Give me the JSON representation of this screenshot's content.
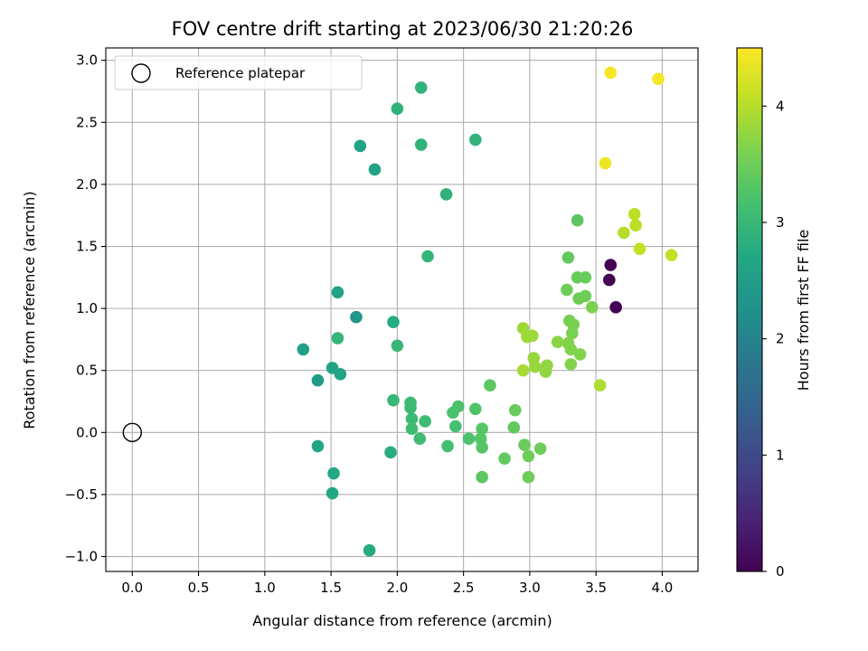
{
  "chart_data": {
    "type": "scatter",
    "title": "FOV centre drift starting at 2023/06/30 21:20:26",
    "xlabel": "Angular distance from reference (arcmin)",
    "ylabel": "Rotation from reference (arcmin)",
    "xlim": [
      -0.2,
      4.27
    ],
    "ylim": [
      -1.12,
      3.1
    ],
    "xticks": [
      "0.0",
      "0.5",
      "1.0",
      "1.5",
      "2.0",
      "2.5",
      "3.0",
      "3.5",
      "4.0"
    ],
    "xtick_values": [
      0,
      0.5,
      1.0,
      1.5,
      2.0,
      2.5,
      3.0,
      3.5,
      4.0
    ],
    "yticks": [
      "−1.0",
      "−0.5",
      "0.0",
      "0.5",
      "1.0",
      "1.5",
      "2.0",
      "2.5",
      "3.0"
    ],
    "ytick_values": [
      -1.0,
      -0.5,
      0,
      0.5,
      1.0,
      1.5,
      2.0,
      2.5,
      3.0
    ],
    "grid": true,
    "legend": {
      "placement": "top-left",
      "entries": [
        "Reference platepar"
      ]
    },
    "reference_point": {
      "x": 0,
      "y": 0
    },
    "colorbar": {
      "label": "Hours from first FF file",
      "colormap": "viridis",
      "range": [
        0,
        4.5
      ],
      "ticks": [
        "0",
        "1",
        "2",
        "3",
        "4"
      ],
      "tick_values": [
        0,
        1,
        2,
        3,
        4
      ]
    },
    "points": [
      {
        "x": 3.61,
        "y": 1.35,
        "h": 0.0
      },
      {
        "x": 3.6,
        "y": 1.23,
        "h": 0.0
      },
      {
        "x": 3.65,
        "y": 1.01,
        "h": 0.0
      },
      {
        "x": 1.69,
        "y": 0.93,
        "h": 2.35
      },
      {
        "x": 1.4,
        "y": 0.42,
        "h": 2.45
      },
      {
        "x": 1.29,
        "y": 0.67,
        "h": 2.55
      },
      {
        "x": 1.55,
        "y": 1.13,
        "h": 2.6
      },
      {
        "x": 1.51,
        "y": 0.52,
        "h": 2.6
      },
      {
        "x": 1.57,
        "y": 0.47,
        "h": 2.65
      },
      {
        "x": 1.4,
        "y": -0.11,
        "h": 2.65
      },
      {
        "x": 1.52,
        "y": -0.33,
        "h": 2.7
      },
      {
        "x": 1.51,
        "y": -0.49,
        "h": 2.7
      },
      {
        "x": 1.79,
        "y": -0.95,
        "h": 2.75
      },
      {
        "x": 1.72,
        "y": 2.31,
        "h": 2.6
      },
      {
        "x": 1.83,
        "y": 2.12,
        "h": 2.6
      },
      {
        "x": 1.97,
        "y": 0.89,
        "h": 2.75
      },
      {
        "x": 1.95,
        "y": -0.16,
        "h": 2.8
      },
      {
        "x": 1.55,
        "y": 0.76,
        "h": 2.95
      },
      {
        "x": 2.0,
        "y": 2.61,
        "h": 2.9
      },
      {
        "x": 2.18,
        "y": 2.78,
        "h": 2.9
      },
      {
        "x": 2.18,
        "y": 2.32,
        "h": 2.9
      },
      {
        "x": 2.37,
        "y": 1.92,
        "h": 2.9
      },
      {
        "x": 2.59,
        "y": 2.36,
        "h": 2.9
      },
      {
        "x": 2.23,
        "y": 1.42,
        "h": 2.95
      },
      {
        "x": 2.0,
        "y": 0.7,
        "h": 3.0
      },
      {
        "x": 1.97,
        "y": 0.26,
        "h": 3.0
      },
      {
        "x": 2.1,
        "y": 0.24,
        "h": 3.05
      },
      {
        "x": 2.1,
        "y": 0.2,
        "h": 3.05
      },
      {
        "x": 2.11,
        "y": 0.11,
        "h": 3.05
      },
      {
        "x": 2.11,
        "y": 0.03,
        "h": 3.1
      },
      {
        "x": 2.17,
        "y": -0.05,
        "h": 3.1
      },
      {
        "x": 2.21,
        "y": 0.09,
        "h": 3.1
      },
      {
        "x": 2.38,
        "y": -0.11,
        "h": 3.15
      },
      {
        "x": 2.44,
        "y": 0.05,
        "h": 3.15
      },
      {
        "x": 2.46,
        "y": 0.21,
        "h": 3.2
      },
      {
        "x": 2.42,
        "y": 0.16,
        "h": 3.2
      },
      {
        "x": 2.54,
        "y": -0.05,
        "h": 3.2
      },
      {
        "x": 2.59,
        "y": 0.19,
        "h": 3.25
      },
      {
        "x": 2.63,
        "y": -0.05,
        "h": 3.3
      },
      {
        "x": 2.64,
        "y": -0.12,
        "h": 3.3
      },
      {
        "x": 2.64,
        "y": 0.03,
        "h": 3.3
      },
      {
        "x": 2.64,
        "y": -0.36,
        "h": 3.35
      },
      {
        "x": 2.7,
        "y": 0.38,
        "h": 3.35
      },
      {
        "x": 2.81,
        "y": -0.21,
        "h": 3.4
      },
      {
        "x": 2.88,
        "y": 0.04,
        "h": 3.4
      },
      {
        "x": 2.89,
        "y": 0.18,
        "h": 3.45
      },
      {
        "x": 2.96,
        "y": -0.1,
        "h": 3.45
      },
      {
        "x": 2.99,
        "y": -0.19,
        "h": 3.5
      },
      {
        "x": 2.99,
        "y": -0.36,
        "h": 3.5
      },
      {
        "x": 3.08,
        "y": -0.13,
        "h": 3.5
      },
      {
        "x": 3.29,
        "y": 1.41,
        "h": 3.4
      },
      {
        "x": 3.36,
        "y": 1.71,
        "h": 3.35
      },
      {
        "x": 3.36,
        "y": 1.25,
        "h": 3.45
      },
      {
        "x": 3.42,
        "y": 1.25,
        "h": 3.45
      },
      {
        "x": 3.28,
        "y": 1.15,
        "h": 3.5
      },
      {
        "x": 3.37,
        "y": 1.08,
        "h": 3.5
      },
      {
        "x": 3.42,
        "y": 1.1,
        "h": 3.5
      },
      {
        "x": 3.47,
        "y": 1.01,
        "h": 3.6
      },
      {
        "x": 3.3,
        "y": 0.9,
        "h": 3.55
      },
      {
        "x": 3.33,
        "y": 0.87,
        "h": 3.6
      },
      {
        "x": 3.32,
        "y": 0.8,
        "h": 3.6
      },
      {
        "x": 3.29,
        "y": 0.72,
        "h": 3.65
      },
      {
        "x": 3.31,
        "y": 0.67,
        "h": 3.65
      },
      {
        "x": 3.38,
        "y": 0.63,
        "h": 3.65
      },
      {
        "x": 3.31,
        "y": 0.55,
        "h": 3.65
      },
      {
        "x": 3.21,
        "y": 0.73,
        "h": 3.7
      },
      {
        "x": 3.13,
        "y": 0.54,
        "h": 3.75
      },
      {
        "x": 3.12,
        "y": 0.49,
        "h": 3.75
      },
      {
        "x": 3.03,
        "y": 0.6,
        "h": 3.8
      },
      {
        "x": 3.04,
        "y": 0.53,
        "h": 3.8
      },
      {
        "x": 3.02,
        "y": 0.78,
        "h": 3.85
      },
      {
        "x": 2.98,
        "y": 0.77,
        "h": 3.85
      },
      {
        "x": 2.95,
        "y": 0.84,
        "h": 3.85
      },
      {
        "x": 2.95,
        "y": 0.5,
        "h": 3.9
      },
      {
        "x": 3.53,
        "y": 0.38,
        "h": 3.95
      },
      {
        "x": 3.71,
        "y": 1.61,
        "h": 4.0
      },
      {
        "x": 3.79,
        "y": 1.76,
        "h": 4.05
      },
      {
        "x": 3.8,
        "y": 1.67,
        "h": 4.05
      },
      {
        "x": 3.83,
        "y": 1.48,
        "h": 4.1
      },
      {
        "x": 4.07,
        "y": 1.43,
        "h": 4.1
      },
      {
        "x": 3.57,
        "y": 2.17,
        "h": 4.4
      },
      {
        "x": 3.61,
        "y": 2.9,
        "h": 4.45
      },
      {
        "x": 3.97,
        "y": 2.85,
        "h": 4.45
      }
    ]
  }
}
